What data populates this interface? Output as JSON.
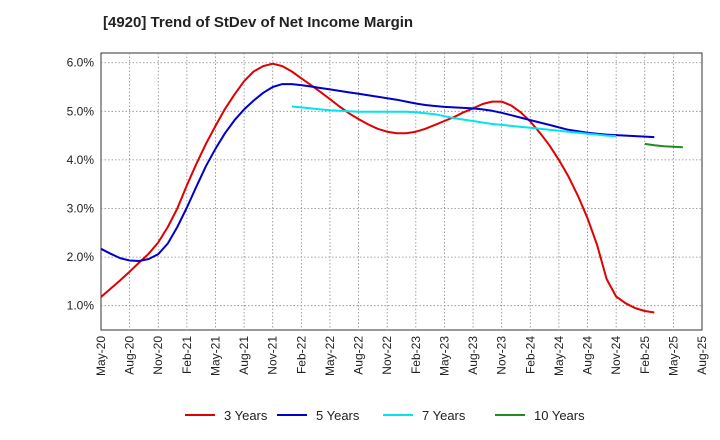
{
  "chart_data": {
    "type": "line",
    "title": "[4920]  Trend of StDev of Net Income Margin",
    "xlabel": "",
    "ylabel": "",
    "x_ticks": [
      "May-20",
      "Aug-20",
      "Nov-20",
      "Feb-21",
      "May-21",
      "Aug-21",
      "Nov-21",
      "Feb-22",
      "May-22",
      "Aug-22",
      "Nov-22",
      "Feb-23",
      "May-23",
      "Aug-23",
      "Nov-23",
      "Feb-24",
      "May-24",
      "Aug-24",
      "Nov-24",
      "Feb-25",
      "May-25",
      "Aug-25"
    ],
    "y_ticks": [
      "1.0%",
      "2.0%",
      "3.0%",
      "4.0%",
      "5.0%",
      "6.0%"
    ],
    "ylim": [
      0.5,
      6.2
    ],
    "grid": true,
    "legend_position": "bottom",
    "series": [
      {
        "name": "3 Years",
        "color": "#e00000",
        "x_start": "May-20",
        "values": [
          1.18,
          1.35,
          1.52,
          1.7,
          1.89,
          2.07,
          2.3,
          2.62,
          3.0,
          3.48,
          3.92,
          4.33,
          4.7,
          5.05,
          5.35,
          5.62,
          5.82,
          5.93,
          5.98,
          5.93,
          5.82,
          5.68,
          5.54,
          5.4,
          5.25,
          5.1,
          4.96,
          4.84,
          4.73,
          4.64,
          4.58,
          4.55,
          4.55,
          4.58,
          4.64,
          4.72,
          4.8,
          4.88,
          4.98,
          5.06,
          5.15,
          5.2,
          5.2,
          5.12,
          4.98,
          4.79,
          4.56,
          4.3,
          4.0,
          3.66,
          3.26,
          2.8,
          2.25,
          1.55,
          1.19,
          1.05,
          0.95,
          0.89,
          0.86
        ]
      },
      {
        "name": "5 Years",
        "color": "#0000cc",
        "x_start": "May-20",
        "values": [
          2.17,
          2.07,
          1.98,
          1.93,
          1.92,
          1.96,
          2.06,
          2.28,
          2.62,
          3.02,
          3.45,
          3.87,
          4.23,
          4.55,
          4.82,
          5.04,
          5.22,
          5.38,
          5.5,
          5.56,
          5.56,
          5.54,
          5.51,
          5.48,
          5.45,
          5.42,
          5.39,
          5.36,
          5.33,
          5.3,
          5.27,
          5.24,
          5.2,
          5.16,
          5.13,
          5.11,
          5.09,
          5.08,
          5.07,
          5.06,
          5.04,
          5.01,
          4.97,
          4.92,
          4.87,
          4.82,
          4.77,
          4.72,
          4.67,
          4.62,
          4.59,
          4.56,
          4.54,
          4.52,
          4.51,
          4.5,
          4.49,
          4.48,
          4.47
        ]
      },
      {
        "name": "7 Years",
        "color": "#00e5ee",
        "x_start": "Jan-22",
        "values": [
          5.1,
          5.08,
          5.06,
          5.04,
          5.02,
          5.01,
          5.0,
          4.99,
          4.99,
          4.99,
          4.99,
          4.99,
          4.99,
          4.98,
          4.96,
          4.94,
          4.9,
          4.86,
          4.83,
          4.8,
          4.77,
          4.74,
          4.72,
          4.7,
          4.68,
          4.66,
          4.64,
          4.62,
          4.6,
          4.58,
          4.56,
          4.54,
          4.52,
          4.5,
          4.49
        ]
      },
      {
        "name": "10 Years",
        "color": "#228b22",
        "x_start": "Feb-25",
        "values": [
          4.33,
          4.3,
          4.28,
          4.27,
          4.26
        ]
      }
    ]
  }
}
